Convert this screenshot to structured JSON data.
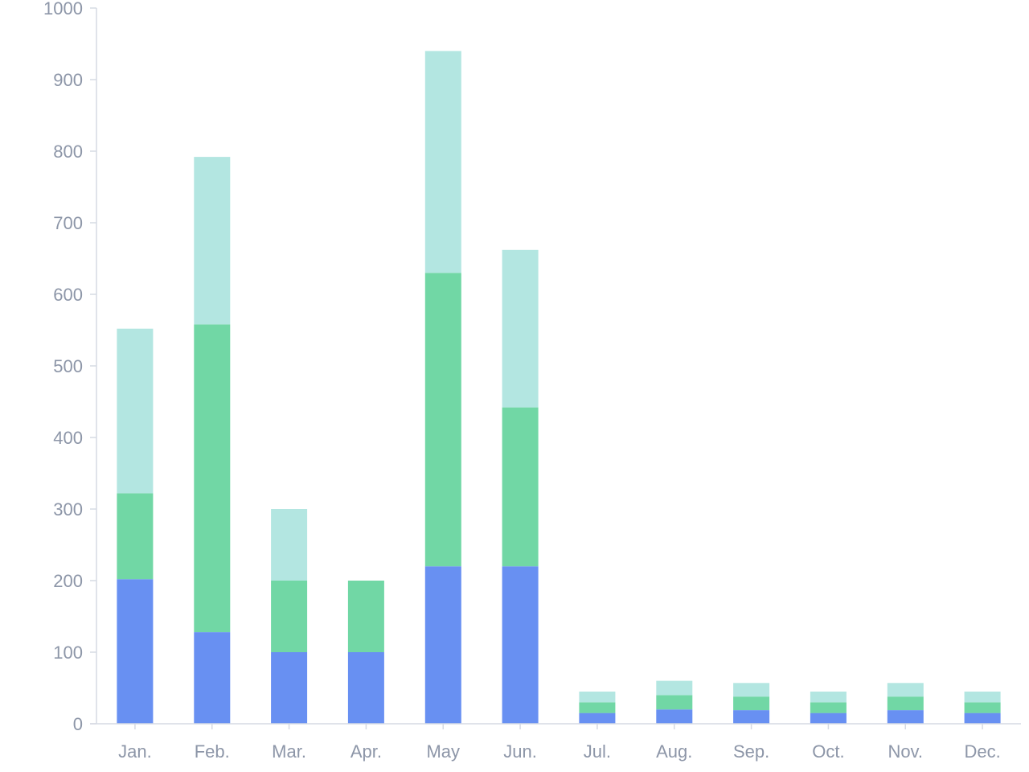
{
  "chart_data": {
    "type": "bar",
    "stacked": true,
    "categories": [
      "Jan.",
      "Feb.",
      "Mar.",
      "Apr.",
      "May",
      "Jun.",
      "Jul.",
      "Aug.",
      "Sep.",
      "Oct.",
      "Nov.",
      "Dec."
    ],
    "series": [
      {
        "color": "#6890f2",
        "values": [
          202,
          128,
          100,
          100,
          220,
          220,
          15,
          20,
          19,
          15,
          19,
          15
        ]
      },
      {
        "color": "#71d7a5",
        "values": [
          120,
          430,
          100,
          100,
          410,
          222,
          15,
          20,
          19,
          15,
          19,
          15
        ]
      },
      {
        "color": "#b3e6e1",
        "values": [
          230,
          234,
          100,
          0,
          310,
          220,
          15,
          20,
          19,
          15,
          19,
          15
        ]
      }
    ],
    "ylim": [
      0,
      1000
    ],
    "yticks": [
      0,
      100,
      200,
      300,
      400,
      500,
      600,
      700,
      800,
      900,
      1000
    ],
    "ytick_labels": [
      "0",
      "100",
      "200",
      "300",
      "400",
      "500",
      "600",
      "700",
      "800",
      "900",
      "1000"
    ],
    "title": "",
    "xlabel": "",
    "ylabel": "",
    "grid": false,
    "legend": false,
    "axis_color": "#d6dae3",
    "label_color": "#8d96a8"
  }
}
